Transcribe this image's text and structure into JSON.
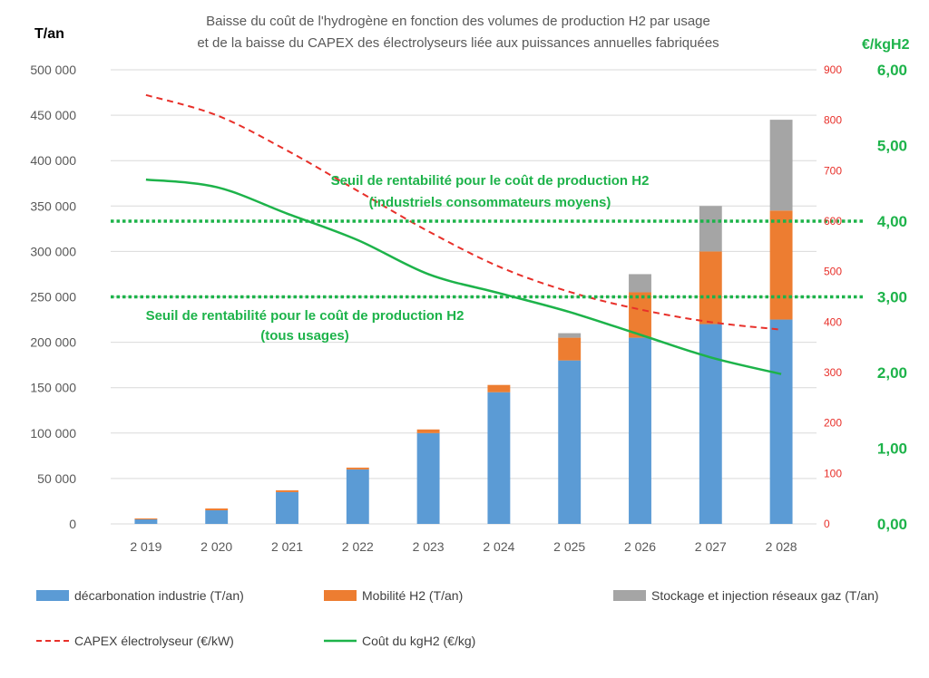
{
  "chart_data": {
    "type": "bar",
    "title_lines": [
      "Baisse du coût de l'hydrogène en fonction des volumes de production H2 par usage",
      "et de la baisse du CAPEX des électrolyseurs liée aux puissances annuelles fabriquées"
    ],
    "ylabel_left": "T/an",
    "ylabel_right": "€/kgH2",
    "categories": [
      "2 019",
      "2 020",
      "2 021",
      "2 022",
      "2 023",
      "2 024",
      "2 025",
      "2 026",
      "2 027",
      "2 028"
    ],
    "ylim_left": [
      0,
      500000
    ],
    "yticks_left": [
      "0",
      "50 000",
      "100 000",
      "150 000",
      "200 000",
      "250 000",
      "300 000",
      "350 000",
      "400 000",
      "450 000",
      "500 000"
    ],
    "ylim_capex": [
      0,
      900
    ],
    "yticks_capex": [
      "0",
      "100",
      "200",
      "300",
      "400",
      "500",
      "600",
      "700",
      "800",
      "900"
    ],
    "ylim_cost": [
      0,
      6
    ],
    "yticks_cost": [
      "0,00",
      "1,00",
      "2,00",
      "3,00",
      "4,00",
      "5,00",
      "6,00"
    ],
    "stacked_series": [
      {
        "name": "décarbonation industrie (T/an)",
        "color": "#5b9bd5",
        "values": [
          5000,
          15000,
          35000,
          60000,
          100000,
          145000,
          180000,
          205000,
          220000,
          225000
        ]
      },
      {
        "name": "Mobilité H2 (T/an)",
        "color": "#ed7d31",
        "values": [
          1000,
          2000,
          2000,
          2000,
          4000,
          8000,
          25000,
          50000,
          80000,
          120000
        ]
      },
      {
        "name": "Stockage et injection réseaux gaz (T/an)",
        "color": "#a5a5a5",
        "values": [
          0,
          0,
          0,
          0,
          0,
          0,
          5000,
          20000,
          50000,
          100000
        ]
      }
    ],
    "line_series": [
      {
        "name": "CAPEX électrolyseur (€/kW)",
        "color": "#e8302a",
        "style": "dashed",
        "axis": "capex",
        "values": [
          850,
          810,
          740,
          660,
          580,
          510,
          460,
          425,
          400,
          385
        ]
      },
      {
        "name": "Coût du kgH2 (€/kg)",
        "color": "#1db34a",
        "style": "solid",
        "axis": "cost",
        "values": [
          4.55,
          4.45,
          4.1,
          3.75,
          3.3,
          3.05,
          2.8,
          2.5,
          2.2,
          1.98
        ]
      }
    ],
    "thresholds": [
      {
        "value": 4.0,
        "axis": "cost",
        "color": "#1db34a",
        "label_lines": [
          "Seuil de rentabilité  pour le coût de production H2",
          "(industriels consommateurs moyens)"
        ]
      },
      {
        "value": 3.0,
        "axis": "cost",
        "color": "#1db34a",
        "label_lines": [
          "Seuil de rentabilité  pour le coût de production H2",
          "(tous usages)"
        ]
      }
    ],
    "legend_position": "bottom",
    "grid": true
  }
}
